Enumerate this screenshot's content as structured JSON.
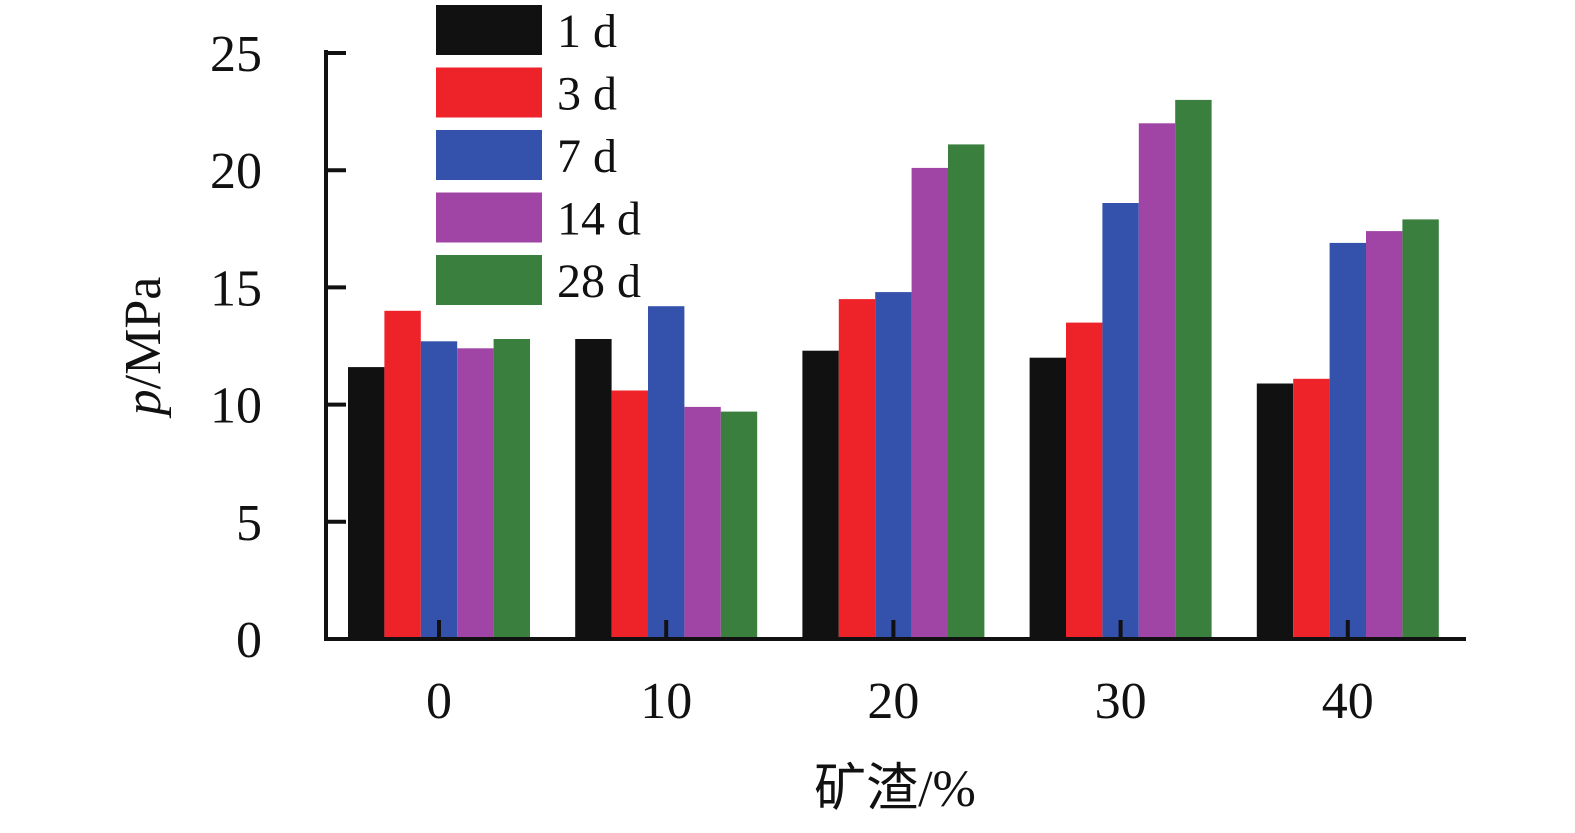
{
  "chart_data": {
    "type": "bar",
    "categories": [
      "0",
      "10",
      "20",
      "30",
      "40"
    ],
    "series": [
      {
        "name": "1 d",
        "color": "#111111",
        "values": [
          11.6,
          12.8,
          12.3,
          12.0,
          10.9
        ]
      },
      {
        "name": "3 d",
        "color": "#ee2229",
        "values": [
          14.0,
          10.6,
          14.5,
          13.5,
          11.1
        ]
      },
      {
        "name": "7 d",
        "color": "#3451ab",
        "values": [
          12.7,
          14.2,
          14.8,
          18.6,
          16.9
        ]
      },
      {
        "name": "14 d",
        "color": "#a044a6",
        "values": [
          12.4,
          9.9,
          20.1,
          22.0,
          17.4
        ]
      },
      {
        "name": "28 d",
        "color": "#3a7f3e",
        "values": [
          12.8,
          9.7,
          21.1,
          23.0,
          17.9
        ]
      }
    ],
    "xlabel": "矿渣/%",
    "ylabel_symbol": "p",
    "ylabel_unit": "/MPa",
    "ylim": [
      0,
      25
    ],
    "yticks": [
      "0",
      "5",
      "10",
      "15",
      "20",
      "25"
    ],
    "legend_position": "top-left",
    "grid": false
  }
}
